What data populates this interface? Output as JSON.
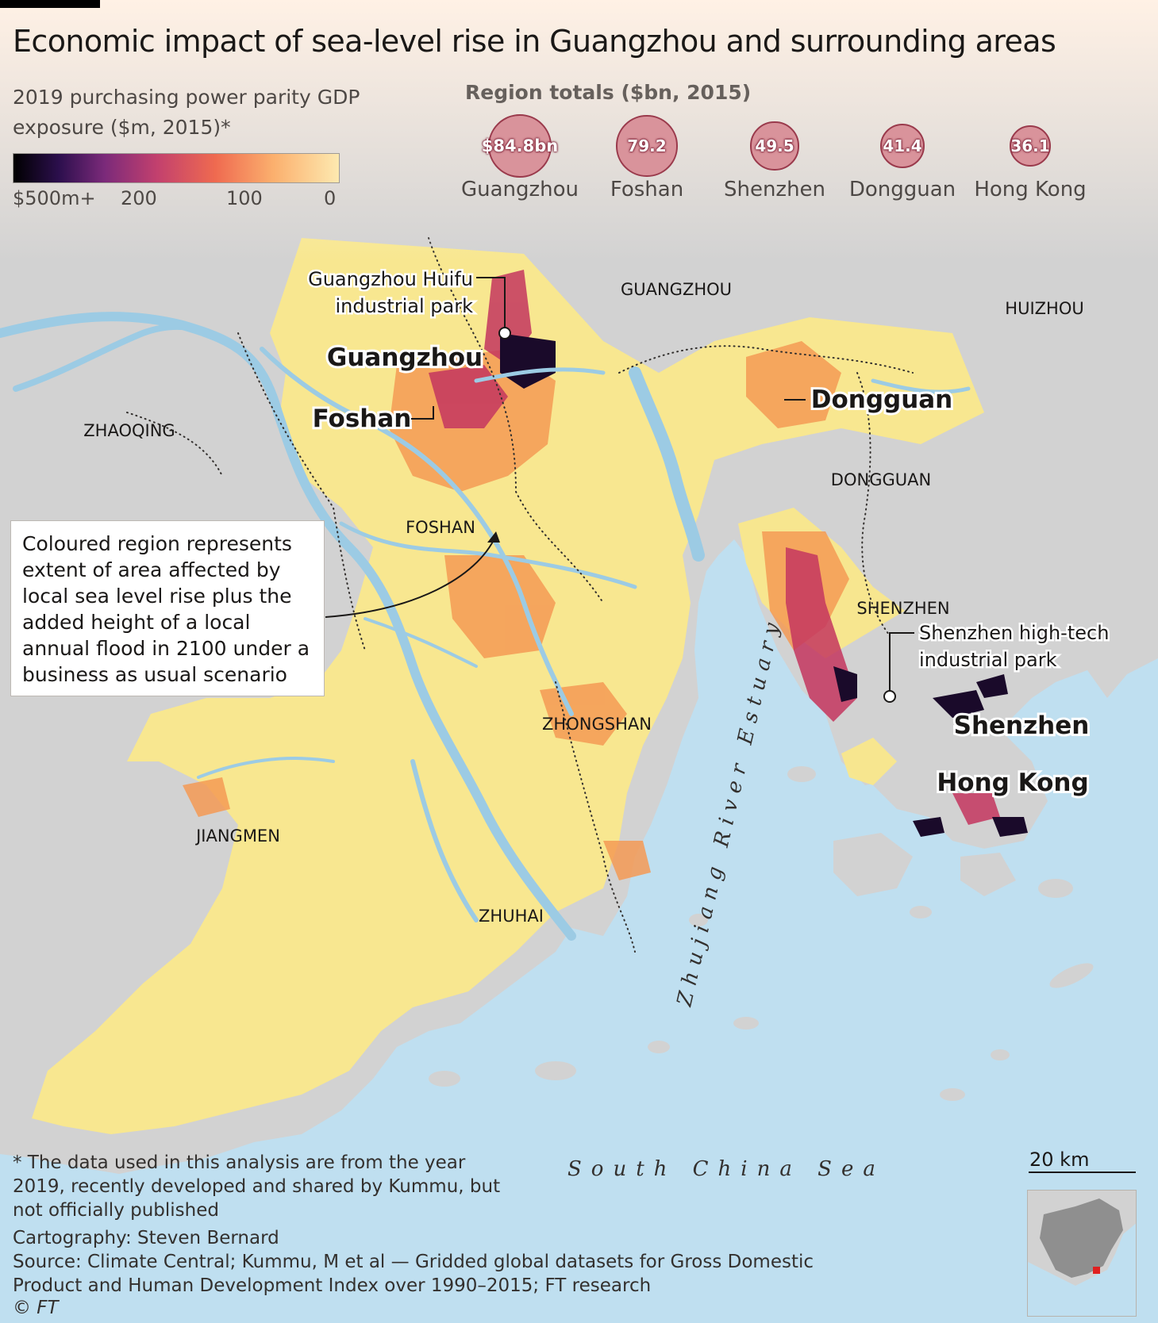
{
  "title": "Economic impact of sea-level rise in Guangzhou and surrounding areas",
  "legend": {
    "title": "2019 purchasing power parity GDP exposure ($m, 2015)*",
    "labels": [
      "$500m+",
      "200",
      "100",
      "0"
    ]
  },
  "region_totals": {
    "title": "Region totals ($bn, 2015)",
    "items": [
      {
        "value": "$84.8bn",
        "name": "Guangzhou",
        "amount": 84.8
      },
      {
        "value": "79.2",
        "name": "Foshan",
        "amount": 79.2
      },
      {
        "value": "49.5",
        "name": "Shenzhen",
        "amount": 49.5
      },
      {
        "value": "41.4",
        "name": "Dongguan",
        "amount": 41.4
      },
      {
        "value": "36.1",
        "name": "Hong Kong",
        "amount": 36.1
      }
    ]
  },
  "map": {
    "region_labels": [
      "GUANGZHOU",
      "HUIZHOU",
      "ZHAOQING",
      "DONGGUAN",
      "FOSHAN",
      "SHENZHEN",
      "ZHONGSHAN",
      "JIANGMEN",
      "ZHUHAI"
    ],
    "city_labels": [
      "Guangzhou",
      "Foshan",
      "Dongguan",
      "Shenzhen",
      "Hong Kong"
    ],
    "callouts": {
      "huifu": "Guangzhou Huifu industrial park",
      "shenzhen_park": "Shenzhen high-tech industrial park"
    },
    "water_labels": {
      "estuary": "Zhujiang River Estuary",
      "sea": "South China Sea"
    },
    "annotation": "Coloured region represents extent of area affected by local sea level rise plus the added height of a local annual flood in 2100 under a business as usual scenario",
    "scale": "20 km",
    "colors": {
      "sea": "#bfdff0",
      "land": "#cfcfcf",
      "river": "#9ccbe4",
      "low": "#fbe88a",
      "mid": "#f59a55",
      "high": "#c4365f",
      "max": "#1a0a2a"
    }
  },
  "footnote": "* The data used in this analysis are from the year 2019, recently developed and shared by Kummu, but not officially published",
  "credits": {
    "cartography": "Cartography: Steven Bernard",
    "source": "Source: Climate Central; Kummu, M et al — Gridded global datasets for Gross Domestic Product and Human Development Index over 1990–2015; FT research",
    "copyright": "© FT"
  }
}
